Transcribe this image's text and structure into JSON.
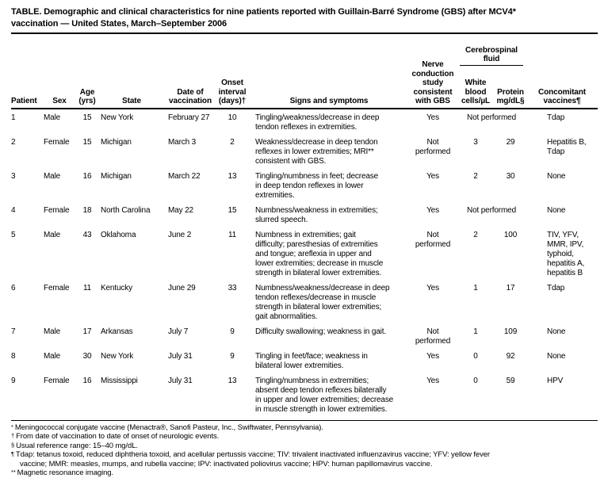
{
  "title": "TABLE. Demographic and clinical characteristics for nine patients reported with Guillain-Barré Syndrome (GBS) after MCV4*\nvaccination — United States, March–September 2006",
  "headers": {
    "patient": "Patient",
    "sex": "Sex",
    "age": "Age\n(yrs)",
    "state": "State",
    "date": "Date of\nvaccination",
    "onset": "Onset\ninterval\n(days)†",
    "signs": "Signs and symptoms",
    "ncs": "Nerve\nconduction\nstudy\nconsistent\nwith GBS",
    "csf_group": "Cerebrospinal\nfluid",
    "wbc": "White\nblood\ncells/µL",
    "protein": "Protein\nmg/dL§",
    "vaccines": "Concomitant\nvaccines¶"
  },
  "table": {
    "rows": [
      [
        "1",
        "Male",
        "15",
        "New York",
        "February 27",
        "10",
        "Tingling/weakness/decrease in deep\ntendon reflexes in extremities.",
        "Yes",
        {
          "v": "Not performed",
          "span": 2
        },
        "Tdap"
      ],
      [
        "2",
        "Female",
        "15",
        "Michigan",
        "March 3",
        "2",
        "Weakness/decrease in deep tendon\nreflexes in lower extremities; MRI**\nconsistent with GBS.",
        "Not\nperformed",
        "3",
        "29",
        "Hepatitis B,\nTdap"
      ],
      [
        "3",
        "Male",
        "16",
        "Michigan",
        "March 22",
        "13",
        "Tingling/numbness in feet; decrease\nin deep tendon reflexes in lower\nextremities.",
        "Yes",
        "2",
        "30",
        "None"
      ],
      [
        "4",
        "Female",
        "18",
        "North Carolina",
        "May 22",
        "15",
        "Numbness/weakness in extremities;\nslurred speech.",
        "Yes",
        {
          "v": "Not performed",
          "span": 2
        },
        "None"
      ],
      [
        "5",
        "Male",
        "43",
        "Oklahoma",
        "June 2",
        "11",
        "Numbness in extremities; gait\ndifficulty; paresthesias of extremities\nand tongue; areflexia in upper and\nlower extremities; decrease in muscle\nstrength in bilateral lower extremities.",
        "Not\nperformed",
        "2",
        "100",
        "TIV, YFV,\nMMR, IPV,\ntyphoid,\nhepatitis A,\nhepatitis B"
      ],
      [
        "6",
        "Female",
        "11",
        "Kentucky",
        "June 29",
        "33",
        "Numbness/weakness/decrease in deep\ntendon reflexes/decrease in muscle\nstrength in bilateral lower extremities;\ngait abnormalities.",
        "Yes",
        "1",
        "17",
        "Tdap"
      ],
      [
        "7",
        "Male",
        "17",
        "Arkansas",
        "July 7",
        "9",
        "Difficulty swallowing; weakness in gait.",
        "Not\nperformed",
        "1",
        "109",
        "None"
      ],
      [
        "8",
        "Male",
        "30",
        "New York",
        "July 31",
        "9",
        "Tingling in feet/face; weakness in\nbilateral lower extremities.",
        "Yes",
        "0",
        "92",
        "None"
      ],
      [
        "9",
        "Female",
        "16",
        "Mississippi",
        "July 31",
        "13",
        "Tingling/numbness in extremities;\nabsent deep tendon reflexes bilaterally\nin upper and lower extremities; decrease\nin muscle strength in lower extremities.",
        "Yes",
        "0",
        "59",
        "HPV"
      ]
    ]
  },
  "footnotes": [
    {
      "marker": "*",
      "text": "Meningococcal conjugate vaccine (Menactra®, Sanofi Pasteur, Inc., Swiftwater, Pennsylvania)."
    },
    {
      "marker": "†",
      "text": "From date of vaccination to date of onset of neurologic events."
    },
    {
      "marker": "§",
      "text": "Usual reference range: 15–40 mg/dL."
    },
    {
      "marker": "¶",
      "text": "Tdap: tetanus toxoid, reduced diphtheria toxoid, and acellular pertussis vaccine; TIV: trivalent inactivated influenzavirus vaccine; YFV: yellow fever\nvaccine; MMR: measles, mumps, and rubella vaccine; IPV: inactivated poliovirus vaccine; HPV: human papillomavirus vaccine."
    },
    {
      "marker": "**",
      "text": "Magnetic resonance imaging."
    }
  ]
}
